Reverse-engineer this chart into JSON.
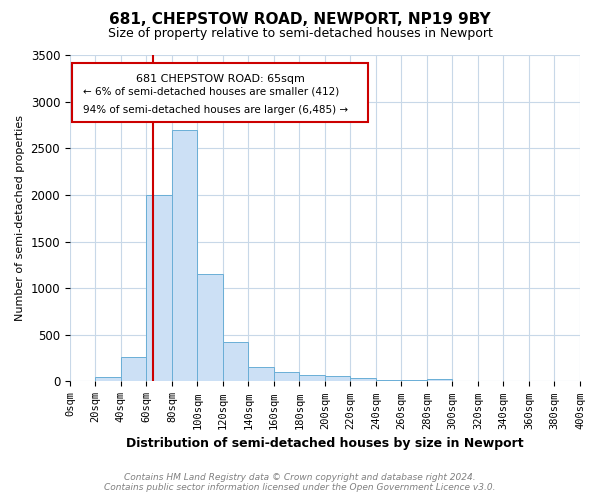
{
  "title": "681, CHEPSTOW ROAD, NEWPORT, NP19 9BY",
  "subtitle": "Size of property relative to semi-detached houses in Newport",
  "xlabel": "Distribution of semi-detached houses by size in Newport",
  "ylabel": "Number of semi-detached properties",
  "footer_line1": "Contains HM Land Registry data © Crown copyright and database right 2024.",
  "footer_line2": "Contains public sector information licensed under the Open Government Licence v3.0.",
  "annotation_line1": "681 CHEPSTOW ROAD: 65sqm",
  "annotation_line2": "← 6% of semi-detached houses are smaller (412)",
  "annotation_line3": "94% of semi-detached houses are larger (6,485) →",
  "property_size": 65,
  "bin_edges": [
    0,
    20,
    40,
    60,
    80,
    100,
    120,
    140,
    160,
    180,
    200,
    220,
    240,
    260,
    280,
    300,
    320,
    340,
    360,
    380,
    400
  ],
  "bar_heights": [
    0,
    50,
    260,
    2000,
    2700,
    1150,
    420,
    160,
    100,
    65,
    60,
    35,
    20,
    15,
    30,
    0,
    0,
    0,
    0,
    0
  ],
  "bar_color": "#cce0f5",
  "bar_edge_color": "#6aaed6",
  "red_line_color": "#cc0000",
  "annotation_box_color": "#cc0000",
  "background_color": "#ffffff",
  "grid_color": "#c8d8e8",
  "ylim": [
    0,
    3500
  ],
  "xlim": [
    0,
    400
  ],
  "yticks": [
    0,
    500,
    1000,
    1500,
    2000,
    2500,
    3000,
    3500
  ]
}
